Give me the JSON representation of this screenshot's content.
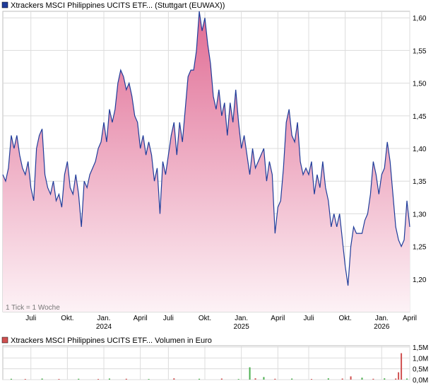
{
  "chart_data": [
    {
      "type": "area",
      "title": "Xtrackers MSCI Philippines UCITS ETF... (Stuttgart (EUWAX))",
      "legend_color": "#1f3c9a",
      "line_color": "#1f3c9a",
      "fill_top_color": "#e06c94",
      "fill_bottom_color": "#fdf2f6",
      "grid": true,
      "ylim": [
        1.15,
        1.61
      ],
      "yticks": [
        "1,20",
        "1,25",
        "1,30",
        "1,35",
        "1,40",
        "1,45",
        "1,50",
        "1,55",
        "1,60"
      ],
      "ytick_values": [
        1.2,
        1.25,
        1.3,
        1.35,
        1.4,
        1.45,
        1.5,
        1.55,
        1.6
      ],
      "xlim": [
        0,
        145
      ],
      "xticks": [
        {
          "label": "Juli",
          "x": 10
        },
        {
          "label": "Okt.",
          "x": 23
        },
        {
          "label": "Jan.",
          "x": 36
        },
        {
          "label": "April",
          "x": 49
        },
        {
          "label": "Juli",
          "x": 59
        },
        {
          "label": "Okt.",
          "x": 72
        },
        {
          "label": "Jan.",
          "x": 85
        },
        {
          "label": "April",
          "x": 98
        },
        {
          "label": "Juli",
          "x": 109
        },
        {
          "label": "Okt.",
          "x": 122
        },
        {
          "label": "Jan.",
          "x": 135
        },
        {
          "label": "April",
          "x": 145
        }
      ],
      "years": [
        {
          "label": "2024",
          "x": 36
        },
        {
          "label": "2025",
          "x": 85
        },
        {
          "label": "2026",
          "x": 135
        }
      ],
      "note": "1 Tick = 1 Woche",
      "x": [
        0,
        1,
        2,
        3,
        4,
        5,
        6,
        7,
        8,
        9,
        10,
        11,
        12,
        13,
        14,
        15,
        16,
        17,
        18,
        19,
        20,
        21,
        22,
        23,
        24,
        25,
        26,
        27,
        28,
        29,
        30,
        31,
        32,
        33,
        34,
        35,
        36,
        37,
        38,
        39,
        40,
        41,
        42,
        43,
        44,
        45,
        46,
        47,
        48,
        49,
        50,
        51,
        52,
        53,
        54,
        55,
        56,
        57,
        58,
        59,
        60,
        61,
        62,
        63,
        64,
        65,
        66,
        67,
        68,
        69,
        70,
        71,
        72,
        73,
        74,
        75,
        76,
        77,
        78,
        79,
        80,
        81,
        82,
        83,
        84,
        85,
        86,
        87,
        88,
        89,
        90,
        91,
        92,
        93,
        94,
        95,
        96,
        97,
        98,
        99,
        100,
        101,
        102,
        103,
        104,
        105,
        106,
        107,
        108,
        109,
        110,
        111,
        112,
        113,
        114,
        115,
        116,
        117,
        118,
        119,
        120,
        121,
        122,
        123,
        124,
        125,
        126,
        127,
        128,
        129,
        130,
        131,
        132,
        133,
        134,
        135,
        136,
        137,
        138,
        139,
        140,
        141,
        142,
        143,
        144,
        145
      ],
      "values": [
        1.36,
        1.35,
        1.37,
        1.42,
        1.4,
        1.42,
        1.39,
        1.37,
        1.36,
        1.38,
        1.34,
        1.32,
        1.4,
        1.42,
        1.43,
        1.36,
        1.34,
        1.33,
        1.35,
        1.32,
        1.33,
        1.31,
        1.36,
        1.38,
        1.34,
        1.33,
        1.36,
        1.33,
        1.28,
        1.35,
        1.34,
        1.36,
        1.37,
        1.38,
        1.4,
        1.41,
        1.44,
        1.41,
        1.46,
        1.44,
        1.46,
        1.5,
        1.52,
        1.51,
        1.49,
        1.5,
        1.48,
        1.45,
        1.44,
        1.4,
        1.42,
        1.39,
        1.41,
        1.39,
        1.35,
        1.37,
        1.3,
        1.38,
        1.36,
        1.39,
        1.42,
        1.44,
        1.39,
        1.44,
        1.41,
        1.46,
        1.51,
        1.52,
        1.52,
        1.55,
        1.61,
        1.58,
        1.6,
        1.56,
        1.53,
        1.48,
        1.46,
        1.49,
        1.45,
        1.47,
        1.42,
        1.47,
        1.44,
        1.49,
        1.44,
        1.4,
        1.42,
        1.39,
        1.36,
        1.4,
        1.37,
        1.38,
        1.39,
        1.4,
        1.35,
        1.38,
        1.36,
        1.27,
        1.31,
        1.32,
        1.37,
        1.44,
        1.46,
        1.42,
        1.41,
        1.44,
        1.38,
        1.36,
        1.37,
        1.36,
        1.38,
        1.33,
        1.36,
        1.34,
        1.38,
        1.34,
        1.32,
        1.28,
        1.3,
        1.28,
        1.3,
        1.26,
        1.22,
        1.19,
        1.25,
        1.28,
        1.27,
        1.27,
        1.27,
        1.29,
        1.3,
        1.33,
        1.38,
        1.36,
        1.33,
        1.36,
        1.37,
        1.41,
        1.38,
        1.33,
        1.28,
        1.26,
        1.25,
        1.26,
        1.32,
        1.28
      ]
    },
    {
      "type": "bar",
      "title": "Xtrackers MSCI Philippines UCITS ETF... Volumen in Euro",
      "legend_color": "#d05050",
      "ylim": [
        0,
        1.5
      ],
      "yticks": [
        "0,0M",
        "0,5M",
        "1,0M",
        "1,5M"
      ],
      "ytick_values": [
        0,
        0.5,
        1.0,
        1.5
      ],
      "x": [
        3,
        8,
        14,
        20,
        27,
        34,
        38,
        44,
        52,
        61,
        70,
        78,
        84,
        88,
        90,
        93,
        97,
        103,
        110,
        116,
        121,
        124,
        128,
        132,
        136,
        140,
        141,
        142,
        144
      ],
      "values": [
        0.04,
        0.03,
        0.05,
        0.03,
        0.04,
        0.03,
        0.05,
        0.04,
        0.03,
        0.06,
        0.04,
        0.05,
        0.03,
        0.57,
        0.06,
        0.12,
        0.04,
        0.05,
        0.03,
        0.06,
        0.05,
        0.15,
        0.09,
        0.04,
        0.06,
        0.05,
        0.34,
        1.22,
        0.05
      ],
      "colors": [
        "#4caf50",
        "#d05050",
        "#4caf50",
        "#d05050",
        "#4caf50",
        "#d05050",
        "#4caf50",
        "#d05050",
        "#4caf50",
        "#d05050",
        "#4caf50",
        "#d05050",
        "#4caf50",
        "#4caf50",
        "#d05050",
        "#4caf50",
        "#d05050",
        "#4caf50",
        "#d05050",
        "#4caf50",
        "#d05050",
        "#d05050",
        "#4caf50",
        "#d05050",
        "#4caf50",
        "#d05050",
        "#d05050",
        "#d05050",
        "#4caf50"
      ]
    }
  ]
}
